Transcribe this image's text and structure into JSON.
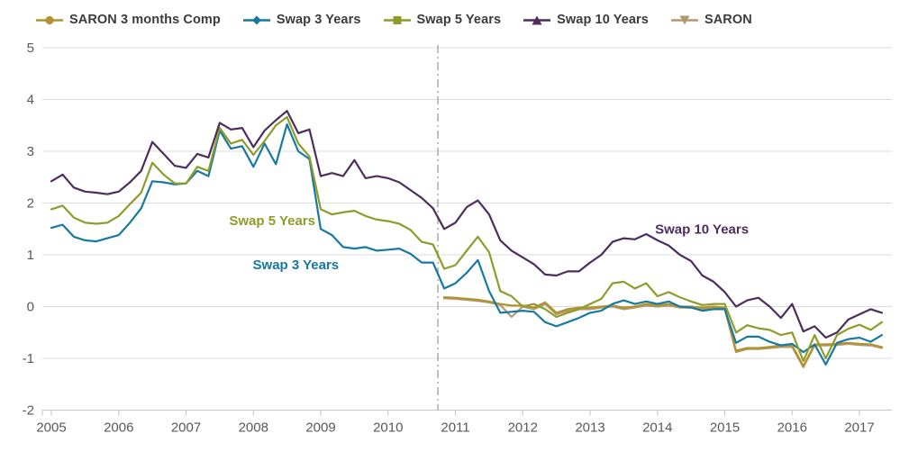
{
  "chart_data": {
    "type": "line",
    "title": "",
    "xlabel": "",
    "ylabel": "",
    "grid": true,
    "legend_position": "top-left",
    "x_axis": {
      "min": 2004.87,
      "max": 2017.48,
      "ticks": [
        2005,
        2006,
        2007,
        2008,
        2009,
        2010,
        2011,
        2012,
        2013,
        2014,
        2015,
        2016,
        2017
      ]
    },
    "y_axis": {
      "min": -2,
      "max": 5,
      "ticks": [
        5,
        4,
        3,
        2,
        1,
        0,
        -1,
        -2
      ]
    },
    "reference_line": {
      "x": 2010.74,
      "style": "dash-dot",
      "color": "#b0b0b0"
    },
    "series": [
      {
        "name": "SARON 3 months Comp",
        "color": "#b2922d",
        "marker": "circle",
        "x_start": 2010.8333,
        "x_step": 0.16667,
        "values": [
          0.18,
          0.17,
          0.15,
          0.13,
          0.1,
          0.05,
          0.02,
          0.02,
          -0.02,
          0.08,
          -0.12,
          -0.05,
          -0.02,
          -0.02,
          0.0,
          0.02,
          -0.02,
          0.0,
          0.05,
          0.02,
          0.05,
          0.0,
          0.0,
          -0.02,
          0.0,
          -0.02,
          -0.85,
          -0.8,
          -0.8,
          -0.78,
          -0.75,
          -0.75,
          -1.15,
          -0.73,
          -0.73,
          -0.72,
          -0.7,
          -0.72,
          -0.73,
          -0.78
        ]
      },
      {
        "name": "Swap 3 Years",
        "color": "#1779a0",
        "marker": "diamond",
        "x_start": 2005.0,
        "x_step": 0.16667,
        "values": [
          1.52,
          1.58,
          1.35,
          1.28,
          1.26,
          1.32,
          1.38,
          1.62,
          1.9,
          2.42,
          2.4,
          2.36,
          2.38,
          2.62,
          2.52,
          3.4,
          3.05,
          3.1,
          2.7,
          3.15,
          2.75,
          3.52,
          3.0,
          2.85,
          1.5,
          1.38,
          1.15,
          1.12,
          1.15,
          1.08,
          1.1,
          1.12,
          1.02,
          0.85,
          0.85,
          0.35,
          0.45,
          0.65,
          0.9,
          0.3,
          -0.12,
          -0.1,
          -0.08,
          -0.1,
          -0.3,
          -0.38,
          -0.3,
          -0.22,
          -0.12,
          -0.08,
          0.05,
          0.12,
          0.05,
          0.1,
          0.05,
          0.1,
          0.0,
          -0.02,
          -0.08,
          -0.05,
          -0.05,
          -0.7,
          -0.58,
          -0.58,
          -0.68,
          -0.75,
          -0.72,
          -0.88,
          -0.73,
          -1.12,
          -0.7,
          -0.63,
          -0.6,
          -0.68,
          -0.55
        ]
      },
      {
        "name": "Swap 5 Years",
        "color": "#8e9c2b",
        "marker": "square",
        "x_start": 2005.0,
        "x_step": 0.16667,
        "values": [
          1.88,
          1.95,
          1.72,
          1.62,
          1.6,
          1.62,
          1.75,
          1.98,
          2.2,
          2.78,
          2.55,
          2.38,
          2.38,
          2.7,
          2.62,
          3.45,
          3.15,
          3.22,
          2.93,
          3.2,
          3.5,
          3.66,
          3.15,
          2.9,
          1.88,
          1.78,
          1.82,
          1.85,
          1.75,
          1.68,
          1.65,
          1.6,
          1.48,
          1.25,
          1.2,
          0.73,
          0.8,
          1.08,
          1.35,
          1.05,
          0.3,
          0.2,
          0.0,
          0.05,
          -0.05,
          -0.2,
          -0.12,
          -0.05,
          0.05,
          0.15,
          0.45,
          0.48,
          0.35,
          0.45,
          0.2,
          0.28,
          0.18,
          0.1,
          0.03,
          0.05,
          0.05,
          -0.5,
          -0.36,
          -0.42,
          -0.45,
          -0.55,
          -0.5,
          -1.05,
          -0.55,
          -1.0,
          -0.55,
          -0.43,
          -0.35,
          -0.45,
          -0.3
        ]
      },
      {
        "name": "Swap 10 Years",
        "color": "#4d2d5e",
        "marker": "triangle-up",
        "x_start": 2005.0,
        "x_step": 0.16667,
        "values": [
          2.42,
          2.55,
          2.3,
          2.22,
          2.2,
          2.17,
          2.22,
          2.4,
          2.62,
          3.18,
          2.95,
          2.72,
          2.68,
          2.95,
          2.88,
          3.55,
          3.42,
          3.45,
          3.08,
          3.4,
          3.6,
          3.78,
          3.35,
          3.42,
          2.52,
          2.58,
          2.52,
          2.83,
          2.48,
          2.52,
          2.48,
          2.4,
          2.25,
          2.1,
          1.9,
          1.5,
          1.62,
          1.92,
          2.05,
          1.78,
          1.28,
          1.08,
          0.95,
          0.82,
          0.62,
          0.6,
          0.68,
          0.68,
          0.85,
          1.0,
          1.25,
          1.32,
          1.3,
          1.4,
          1.28,
          1.18,
          1.0,
          0.88,
          0.6,
          0.48,
          0.28,
          0.0,
          0.12,
          0.17,
          0.0,
          -0.22,
          0.05,
          -0.48,
          -0.38,
          -0.6,
          -0.5,
          -0.25,
          -0.15,
          -0.05,
          -0.12
        ]
      },
      {
        "name": "SARON",
        "color": "#b09a72",
        "marker": "triangle-down",
        "x_start": 2010.8333,
        "x_step": 0.16667,
        "values": [
          0.16,
          0.15,
          0.13,
          0.11,
          0.08,
          0.03,
          -0.2,
          0.0,
          -0.05,
          0.05,
          -0.15,
          -0.08,
          -0.05,
          -0.05,
          -0.02,
          0.0,
          -0.05,
          -0.02,
          0.02,
          0.0,
          0.02,
          -0.02,
          -0.02,
          -0.05,
          -0.02,
          -0.05,
          -0.88,
          -0.82,
          -0.82,
          -0.8,
          -0.78,
          -0.78,
          -1.17,
          -0.75,
          -0.75,
          -0.74,
          -0.72,
          -0.74,
          -0.75,
          -0.8
        ]
      }
    ],
    "annotations": [
      {
        "text": "Swap 5 Years",
        "x": 2008.28,
        "y": 1.66,
        "color": "#8e9c2b"
      },
      {
        "text": "Swap 3 Years",
        "x": 2008.63,
        "y": 0.81,
        "color": "#1779a0"
      },
      {
        "text": "Swap 10 Years",
        "x": 2014.66,
        "y": 1.5,
        "color": "#4d2d5e"
      }
    ],
    "style": {
      "gridline_color": "#dcdcdc",
      "axis_line_color": "#c6c6c6",
      "tick_label_color": "#595959",
      "legend_text_color": "#3c3c3c",
      "background": "#ffffff"
    }
  }
}
